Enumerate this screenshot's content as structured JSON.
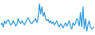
{
  "chart_data": {
    "type": "line",
    "color": "#3a9fdc",
    "tick_labels": false,
    "grid": false,
    "ylim": [
      25,
      100
    ],
    "values": [
      45,
      50,
      40,
      55,
      48,
      52,
      58,
      50,
      45,
      48,
      55,
      50,
      42,
      47,
      60,
      52,
      48,
      55,
      50,
      45,
      52,
      58,
      62,
      55,
      50,
      48,
      53,
      55,
      60,
      50,
      62,
      95,
      70,
      88,
      65,
      75,
      60,
      55,
      58,
      50,
      55,
      48,
      52,
      45,
      50,
      55,
      45,
      40,
      48,
      42,
      38,
      45,
      50,
      42,
      48,
      55,
      40,
      35,
      50,
      45,
      48,
      60,
      55,
      42,
      75,
      40,
      88,
      35,
      60,
      30,
      45,
      55,
      40,
      35,
      38,
      40
    ]
  }
}
